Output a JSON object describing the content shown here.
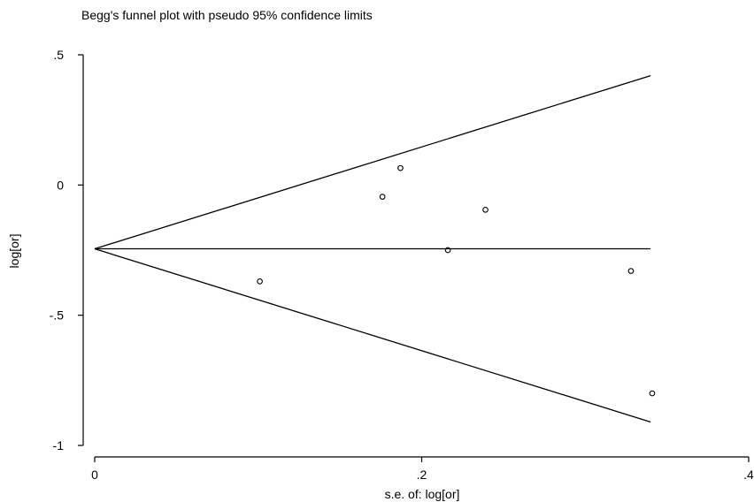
{
  "chart_data": {
    "type": "scatter",
    "title": "Begg's funnel plot with pseudo 95% confidence limits",
    "xlabel": "s.e. of: log[or]",
    "ylabel": "log[or]",
    "xlim": [
      0,
      0.4
    ],
    "ylim": [
      -1,
      0.5
    ],
    "xticks": [
      0,
      0.2,
      0.4
    ],
    "xtick_labels": [
      "0",
      ".2",
      ".4"
    ],
    "yticks": [
      0.5,
      0,
      -0.5,
      -1
    ],
    "ytick_labels": [
      ".5",
      "0",
      "-.5",
      "-1"
    ],
    "grid": false,
    "pooled_estimate": -0.245,
    "funnel_max_se": 0.34,
    "points": [
      {
        "x": 0.101,
        "y": -0.37
      },
      {
        "x": 0.176,
        "y": -0.045
      },
      {
        "x": 0.187,
        "y": 0.065
      },
      {
        "x": 0.216,
        "y": -0.25
      },
      {
        "x": 0.239,
        "y": -0.095
      },
      {
        "x": 0.328,
        "y": -0.33
      },
      {
        "x": 0.341,
        "y": -0.8
      }
    ],
    "lines": [
      {
        "name": "upper-confidence-limit",
        "x": [
          0,
          0.34
        ],
        "y": [
          -0.245,
          0.42
        ]
      },
      {
        "name": "pooled-estimate-line",
        "x": [
          0,
          0.34
        ],
        "y": [
          -0.245,
          -0.245
        ]
      },
      {
        "name": "lower-confidence-limit",
        "x": [
          0,
          0.34
        ],
        "y": [
          -0.245,
          -0.91
        ]
      }
    ]
  }
}
